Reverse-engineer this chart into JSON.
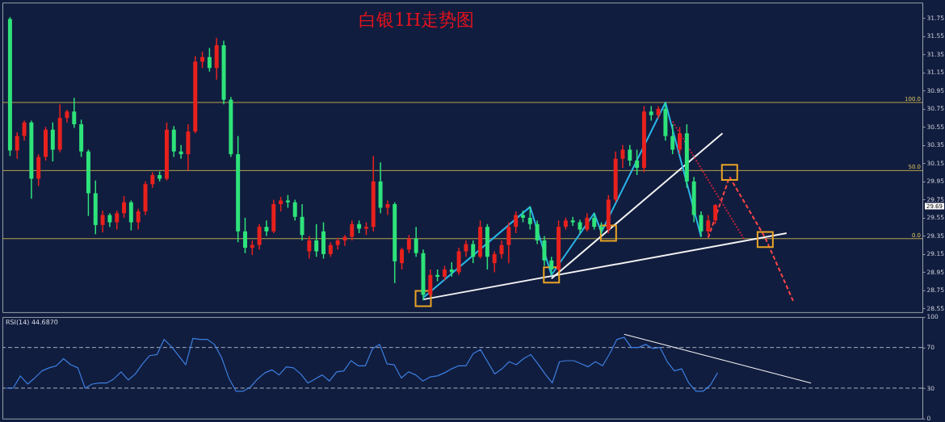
{
  "chart_data": [
    {
      "type": "candlestick",
      "title": "白银1H走势图",
      "categories": [
        null,
        null,
        null,
        null,
        null,
        null,
        null,
        null,
        null,
        null,
        null,
        null,
        null,
        null,
        null,
        null,
        null,
        null,
        null,
        null,
        null,
        null,
        null,
        null,
        null,
        null,
        null,
        null,
        null,
        null,
        null,
        null,
        null,
        null,
        null,
        null,
        null,
        null,
        null,
        null,
        null,
        null,
        null,
        null,
        null,
        null,
        null,
        null,
        null,
        null,
        null,
        null,
        null,
        null,
        null,
        null,
        null,
        null,
        null,
        null,
        null,
        null,
        null,
        null,
        null,
        null,
        null,
        null,
        null,
        null,
        null,
        null,
        null,
        null,
        null,
        null,
        null,
        null,
        null,
        null,
        null,
        null,
        null,
        null,
        null,
        null,
        null,
        null,
        null,
        null,
        null,
        null,
        null,
        null,
        null,
        null,
        null,
        null,
        null,
        null,
        null,
        null,
        null,
        null,
        null,
        null,
        null,
        null,
        null,
        null,
        null,
        null,
        null,
        null,
        null,
        null,
        null,
        null,
        null,
        null,
        null,
        null,
        null,
        null,
        null,
        null,
        null,
        null
      ],
      "ohlc": [
        [
          31.74,
          31.76,
          30.23,
          30.29
        ],
        [
          30.29,
          30.49,
          30.2,
          30.45
        ],
        [
          30.45,
          30.62,
          30.4,
          30.6
        ],
        [
          30.6,
          30.62,
          29.76,
          29.98
        ],
        [
          29.98,
          30.25,
          29.9,
          30.22
        ],
        [
          30.22,
          30.55,
          30.18,
          30.52
        ],
        [
          30.52,
          30.6,
          30.17,
          30.3
        ],
        [
          30.3,
          30.8,
          30.27,
          30.65
        ],
        [
          30.65,
          30.74,
          30.6,
          30.72
        ],
        [
          30.72,
          30.87,
          30.54,
          30.58
        ],
        [
          30.58,
          30.63,
          30.22,
          30.28
        ],
        [
          30.28,
          30.3,
          29.57,
          29.82
        ],
        [
          29.82,
          29.96,
          29.37,
          29.47
        ],
        [
          29.47,
          29.63,
          29.39,
          29.58
        ],
        [
          29.58,
          29.6,
          29.45,
          29.5
        ],
        [
          29.5,
          29.63,
          29.42,
          29.6
        ],
        [
          29.6,
          29.79,
          29.55,
          29.72
        ],
        [
          29.72,
          29.74,
          29.41,
          29.5
        ],
        [
          29.5,
          29.65,
          29.42,
          29.62
        ],
        [
          29.62,
          29.95,
          29.58,
          29.92
        ],
        [
          29.92,
          30.05,
          29.88,
          30.02
        ],
        [
          30.02,
          30.06,
          29.95,
          29.98
        ],
        [
          29.98,
          30.6,
          29.96,
          30.52
        ],
        [
          30.52,
          30.56,
          30.22,
          30.28
        ],
        [
          30.28,
          30.35,
          30.2,
          30.25
        ],
        [
          30.25,
          30.58,
          30.07,
          30.5
        ],
        [
          30.5,
          31.33,
          30.48,
          31.27
        ],
        [
          31.27,
          31.38,
          31.2,
          31.32
        ],
        [
          31.32,
          31.42,
          31.16,
          31.2
        ],
        [
          31.2,
          31.53,
          31.07,
          31.45
        ],
        [
          31.45,
          31.5,
          30.8,
          30.85
        ],
        [
          30.85,
          30.88,
          30.22,
          30.25
        ],
        [
          30.25,
          30.45,
          29.28,
          29.4
        ],
        [
          29.4,
          29.55,
          29.16,
          29.22
        ],
        [
          29.22,
          29.3,
          29.14,
          29.25
        ],
        [
          29.25,
          29.48,
          29.2,
          29.45
        ],
        [
          29.45,
          29.52,
          29.35,
          29.4
        ],
        [
          29.4,
          29.75,
          29.38,
          29.7
        ],
        [
          29.7,
          29.78,
          29.62,
          29.74
        ],
        [
          29.74,
          29.8,
          29.66,
          29.72
        ],
        [
          29.72,
          29.75,
          29.52,
          29.56
        ],
        [
          29.56,
          29.7,
          29.3,
          29.36
        ],
        [
          29.18,
          29.35,
          29.1,
          29.3
        ],
        [
          29.3,
          29.48,
          29.12,
          29.18
        ],
        [
          29.4,
          29.5,
          29.1,
          29.15
        ],
        [
          29.15,
          29.28,
          29.12,
          29.25
        ],
        [
          29.25,
          29.33,
          29.2,
          29.3
        ],
        [
          29.3,
          29.36,
          29.24,
          29.34
        ],
        [
          29.34,
          29.52,
          29.3,
          29.48
        ],
        [
          29.48,
          29.52,
          29.38,
          29.43
        ],
        [
          29.43,
          29.5,
          29.36,
          29.45
        ],
        [
          29.45,
          30.23,
          29.4,
          29.95
        ],
        [
          29.95,
          30.16,
          29.6,
          29.66
        ],
        [
          29.66,
          29.74,
          29.58,
          29.7
        ],
        [
          29.7,
          29.72,
          28.83,
          29.07
        ],
        [
          29.05,
          29.22,
          28.98,
          29.2
        ],
        [
          29.2,
          29.36,
          29.16,
          29.32
        ],
        [
          29.32,
          29.45,
          29.12,
          29.16
        ],
        [
          29.16,
          29.2,
          28.64,
          28.7
        ],
        [
          28.7,
          28.98,
          28.68,
          28.92
        ],
        [
          28.92,
          28.98,
          28.85,
          28.9
        ],
        [
          28.9,
          29.02,
          28.86,
          28.98
        ],
        [
          28.98,
          29.06,
          28.9,
          28.95
        ],
        [
          28.95,
          29.22,
          28.92,
          29.18
        ],
        [
          29.18,
          29.3,
          29.12,
          29.26
        ],
        [
          29.26,
          29.3,
          29.05,
          29.12
        ],
        [
          29.12,
          29.52,
          29.1,
          29.45
        ],
        [
          29.45,
          29.48,
          28.98,
          29.12
        ],
        [
          29.05,
          29.18,
          28.95,
          29.15
        ],
        [
          29.15,
          29.3,
          29.1,
          29.25
        ],
        [
          29.25,
          29.5,
          29.05,
          29.45
        ],
        [
          29.45,
          29.62,
          29.38,
          29.58
        ],
        [
          29.58,
          29.63,
          29.5,
          29.55
        ],
        [
          29.55,
          29.67,
          29.42,
          29.48
        ],
        [
          29.48,
          29.52,
          29.26,
          29.3
        ],
        [
          29.3,
          29.35,
          29.02,
          29.08
        ],
        [
          29.08,
          29.12,
          28.92,
          28.98
        ],
        [
          28.98,
          29.52,
          28.96,
          29.45
        ],
        [
          29.45,
          29.55,
          29.42,
          29.52
        ],
        [
          29.52,
          29.56,
          29.46,
          29.5
        ],
        [
          29.5,
          29.53,
          29.38,
          29.42
        ],
        [
          29.42,
          29.6,
          29.4,
          29.55
        ],
        [
          29.55,
          29.6,
          29.42,
          29.45
        ],
        [
          29.45,
          29.5,
          29.37,
          29.42
        ],
        [
          29.42,
          29.8,
          29.38,
          29.75
        ],
        [
          29.75,
          30.28,
          29.72,
          30.2
        ],
        [
          30.2,
          30.35,
          30.1,
          30.3
        ],
        [
          30.3,
          30.35,
          30.12,
          30.18
        ],
        [
          30.18,
          30.3,
          30.02,
          30.1
        ],
        [
          30.1,
          30.78,
          30.05,
          30.72
        ],
        [
          30.72,
          30.78,
          30.62,
          30.68
        ],
        [
          30.68,
          30.78,
          30.64,
          30.75
        ],
        [
          30.75,
          30.82,
          30.4,
          30.45
        ],
        [
          30.45,
          30.58,
          30.25,
          30.3
        ],
        [
          30.3,
          30.55,
          30.25,
          30.48
        ],
        [
          30.48,
          30.58,
          29.88,
          29.95
        ],
        [
          29.95,
          30.0,
          29.5,
          29.58
        ],
        [
          29.58,
          29.62,
          29.34,
          29.4
        ],
        [
          29.4,
          29.58,
          29.36,
          29.52
        ],
        [
          29.52,
          29.7,
          29.48,
          29.69
        ],
        null,
        null,
        null,
        null,
        null,
        null,
        null,
        null,
        null,
        null,
        null,
        null,
        null,
        null,
        null,
        null,
        null,
        null,
        null,
        null,
        null,
        null,
        null,
        null,
        null,
        null,
        null,
        null
      ],
      "colors": [
        "#2ee37a",
        "#e8211d",
        "#e8211d",
        "#2ee37a",
        "#e8211d",
        "#e8211d",
        "#2ee37a",
        "#e8211d",
        "#e8211d",
        "#2ee37a",
        "#2ee37a",
        "#2ee37a",
        "#2ee37a",
        "#e8211d",
        "#2ee37a",
        "#e8211d",
        "#e8211d",
        "#2ee37a",
        "#e8211d",
        "#e8211d",
        "#e8211d",
        "#2ee37a",
        "#e8211d",
        "#2ee37a",
        "#2ee37a",
        "#e8211d",
        "#e8211d",
        "#e8211d",
        "#2ee37a",
        "#e8211d",
        "#2ee37a",
        "#2ee37a",
        "#2ee37a",
        "#2ee37a",
        "#e8211d",
        "#e8211d",
        "#2ee37a",
        "#e8211d",
        "#e8211d",
        "#2ee37a",
        "#2ee37a",
        "#2ee37a",
        "#e8211d",
        "#2ee37a",
        "#2ee37a",
        "#e8211d",
        "#e8211d",
        "#e8211d",
        "#e8211d",
        "#2ee37a",
        "#e8211d",
        "#e8211d",
        "#2ee37a",
        "#e8211d",
        "#2ee37a",
        "#e8211d",
        "#e8211d",
        "#2ee37a",
        "#2ee37a",
        "#e8211d",
        "#2ee37a",
        "#e8211d",
        "#2ee37a",
        "#e8211d",
        "#e8211d",
        "#2ee37a",
        "#e8211d",
        "#2ee37a",
        "#e8211d",
        "#e8211d",
        "#e8211d",
        "#e8211d",
        "#2ee37a",
        "#2ee37a",
        "#2ee37a",
        "#2ee37a",
        "#2ee37a",
        "#e8211d",
        "#e8211d",
        "#2ee37a",
        "#2ee37a",
        "#e8211d",
        "#2ee37a",
        "#2ee37a",
        "#e8211d",
        "#e8211d",
        "#e8211d",
        "#2ee37a",
        "#2ee37a",
        "#e8211d",
        "#2ee37a",
        "#e8211d",
        "#2ee37a",
        "#2ee37a",
        "#e8211d",
        "#2ee37a",
        "#2ee37a",
        "#2ee37a",
        "#e8211d",
        "#e8211d",
        null,
        null,
        null,
        null,
        null,
        null,
        null,
        null,
        null,
        null,
        null,
        null,
        null,
        null,
        null,
        null,
        null,
        null,
        null,
        null,
        null,
        null,
        null,
        null,
        null,
        null,
        null,
        null
      ],
      "series": [
        {
          "type": "line",
          "color": "#f2f2f2",
          "values": [
            null,
            null,
            null,
            null,
            null,
            null,
            null,
            null,
            null,
            null,
            null,
            null,
            null,
            null,
            null,
            null,
            null,
            null,
            null,
            null,
            null,
            null,
            null,
            null,
            null,
            null,
            null,
            null,
            null,
            null,
            null,
            null,
            null,
            null,
            null,
            null,
            null,
            null,
            null,
            null,
            null,
            null,
            null,
            null,
            null,
            null,
            null,
            null,
            null,
            null,
            null,
            null,
            null,
            null,
            null,
            null,
            null,
            null,
            28.65,
            null,
            null,
            null,
            null,
            null,
            null,
            null,
            null,
            null,
            null,
            null,
            null,
            null,
            null,
            null,
            null,
            null,
            null,
            null,
            null,
            null,
            null,
            null,
            null,
            null,
            null,
            null,
            null,
            null,
            null,
            null,
            null,
            null,
            null,
            null,
            null,
            null,
            null,
            null,
            null,
            null,
            null,
            null,
            null,
            null,
            null,
            null,
            null,
            null,
            null,
            29.38,
            null,
            null,
            null,
            null,
            null,
            null,
            null,
            null,
            null,
            null,
            null,
            null,
            null,
            null,
            null,
            null,
            null,
            null
          ]
        },
        {
          "type": "line",
          "color": "#f2f2f2",
          "values": [
            null,
            null,
            null,
            null,
            null,
            null,
            null,
            null,
            null,
            null,
            null,
            null,
            null,
            null,
            null,
            null,
            null,
            null,
            null,
            null,
            null,
            null,
            null,
            null,
            null,
            null,
            null,
            null,
            null,
            null,
            null,
            null,
            null,
            null,
            null,
            null,
            null,
            null,
            null,
            null,
            null,
            null,
            null,
            null,
            null,
            null,
            null,
            null,
            null,
            null,
            null,
            null,
            null,
            null,
            null,
            null,
            null,
            null,
            null,
            null,
            null,
            null,
            null,
            null,
            null,
            null,
            null,
            null,
            null,
            null,
            null,
            null,
            null,
            null,
            null,
            null,
            28.88,
            null,
            null,
            null,
            null,
            null,
            null,
            null,
            null,
            null,
            null,
            null,
            null,
            null,
            null,
            null,
            null,
            null,
            null,
            null,
            null,
            null,
            null,
            null,
            30.48,
            null,
            null,
            null,
            null,
            null,
            null,
            null,
            null,
            null,
            null,
            null,
            null,
            null,
            null,
            null,
            null,
            null,
            null,
            null,
            null,
            null,
            null,
            null,
            null,
            null,
            null,
            null
          ]
        },
        {
          "type": "line",
          "color": "#29b6e8",
          "values": [
            null,
            null,
            null,
            null,
            null,
            null,
            null,
            null,
            null,
            null,
            null,
            null,
            null,
            null,
            null,
            null,
            null,
            null,
            null,
            null,
            null,
            null,
            null,
            null,
            null,
            null,
            null,
            null,
            null,
            null,
            null,
            null,
            null,
            null,
            null,
            null,
            null,
            null,
            null,
            null,
            null,
            null,
            null,
            null,
            null,
            null,
            null,
            null,
            null,
            null,
            null,
            null,
            null,
            null,
            null,
            null,
            null,
            null,
            28.67,
            null,
            null,
            null,
            null,
            null,
            null,
            null,
            null,
            null,
            null,
            null,
            null,
            null,
            null,
            29.67,
            null,
            null,
            28.92,
            null,
            null,
            null,
            null,
            null,
            29.6,
            29.39,
            null,
            null,
            null,
            null,
            null,
            null,
            null,
            null,
            30.82,
            null,
            null,
            null,
            null,
            29.34,
            null,
            null,
            null,
            null,
            null,
            null,
            null,
            null,
            null,
            null,
            null,
            null,
            null,
            null,
            null,
            null,
            null,
            null,
            null,
            null,
            null,
            null,
            null,
            null,
            null,
            null,
            null,
            null,
            null,
            null
          ]
        },
        {
          "type": "line",
          "color": "#ff4646",
          "line_style": "dashed",
          "values": [
            null,
            null,
            null,
            null,
            null,
            null,
            null,
            null,
            null,
            null,
            null,
            null,
            null,
            null,
            null,
            null,
            null,
            null,
            null,
            null,
            null,
            null,
            null,
            null,
            null,
            null,
            null,
            null,
            null,
            null,
            null,
            null,
            null,
            null,
            null,
            null,
            null,
            null,
            null,
            null,
            null,
            null,
            null,
            null,
            null,
            null,
            null,
            null,
            null,
            null,
            null,
            null,
            null,
            null,
            null,
            null,
            null,
            null,
            null,
            null,
            null,
            null,
            null,
            null,
            null,
            null,
            null,
            null,
            null,
            null,
            null,
            null,
            null,
            null,
            null,
            null,
            null,
            null,
            null,
            null,
            null,
            null,
            null,
            null,
            null,
            null,
            null,
            null,
            null,
            null,
            null,
            null,
            null,
            null,
            null,
            null,
            null,
            null,
            29.33,
            null,
            null,
            30.0,
            null,
            null,
            null,
            null,
            29.33,
            null,
            null,
            null,
            28.62,
            null,
            null,
            null,
            null,
            null,
            null,
            null,
            null,
            null,
            null,
            null,
            null,
            null,
            null,
            null,
            null,
            null
          ]
        },
        {
          "type": "line",
          "color": "#c0203a",
          "line_style": "dotted",
          "values": [
            null,
            null,
            null,
            null,
            null,
            null,
            null,
            null,
            null,
            null,
            null,
            null,
            null,
            null,
            null,
            null,
            null,
            null,
            null,
            null,
            null,
            null,
            null,
            null,
            null,
            null,
            null,
            null,
            null,
            null,
            null,
            null,
            null,
            null,
            null,
            null,
            null,
            null,
            null,
            null,
            null,
            null,
            null,
            null,
            null,
            null,
            null,
            null,
            null,
            null,
            null,
            null,
            null,
            null,
            null,
            null,
            null,
            null,
            null,
            null,
            null,
            null,
            null,
            null,
            null,
            null,
            null,
            null,
            null,
            null,
            null,
            null,
            null,
            null,
            null,
            null,
            null,
            null,
            null,
            null,
            null,
            null,
            null,
            null,
            null,
            null,
            null,
            null,
            null,
            null,
            null,
            null,
            null,
            30.61,
            null,
            null,
            null,
            null,
            null,
            null,
            null,
            null,
            null,
            29.32,
            null,
            null,
            null,
            null,
            null,
            null,
            null,
            null,
            null,
            null,
            null,
            null,
            null,
            null,
            null,
            null,
            null,
            null,
            null,
            null,
            null,
            null,
            null,
            null
          ]
        },
        {
          "type": "scatter",
          "color": "#eaa424",
          "marker": "square",
          "values": [
            null,
            null,
            null,
            null,
            null,
            null,
            null,
            null,
            null,
            null,
            null,
            null,
            null,
            null,
            null,
            null,
            null,
            null,
            null,
            null,
            null,
            null,
            null,
            null,
            null,
            null,
            null,
            null,
            null,
            null,
            null,
            null,
            null,
            null,
            null,
            null,
            null,
            null,
            null,
            null,
            null,
            null,
            null,
            null,
            null,
            null,
            null,
            null,
            null,
            null,
            null,
            null,
            null,
            null,
            null,
            null,
            null,
            null,
            28.66,
            null,
            null,
            null,
            null,
            null,
            null,
            null,
            null,
            null,
            null,
            null,
            null,
            null,
            null,
            null,
            null,
            null,
            28.92,
            null,
            null,
            null,
            null,
            null,
            null,
            null,
            29.38,
            null,
            null,
            null,
            null,
            null,
            null,
            null,
            null,
            null,
            null,
            null,
            null,
            null,
            null,
            null,
            null,
            30.05,
            null,
            null,
            null,
            null,
            29.31,
            null,
            null,
            null,
            null,
            null,
            null,
            null,
            null,
            null,
            null,
            null,
            null,
            null,
            null,
            null,
            null,
            null,
            null,
            null,
            null,
            null
          ]
        }
      ],
      "ylim": [
        28.51,
        31.92
      ],
      "yticks": [
        28.55,
        28.75,
        28.95,
        29.15,
        29.35,
        29.55,
        29.75,
        29.95,
        30.15,
        30.35,
        30.55,
        30.75,
        30.95,
        31.15,
        31.35,
        31.55,
        31.75
      ],
      "ref_lines": [
        {
          "axis": "y",
          "value": 30.82,
          "color": "#b8a44c"
        },
        {
          "axis": "y",
          "value": 30.07,
          "color": "#b8a44c"
        },
        {
          "axis": "y",
          "value": 29.32,
          "color": "#b8a44c"
        }
      ],
      "annotations": [
        {
          "text": "100.0",
          "y": 30.82
        },
        {
          "text": "50.0",
          "y": 30.07
        },
        {
          "text": "0.0",
          "y": 29.32
        },
        "29.69"
      ],
      "tick_labels": "y"
    },
    {
      "type": "line",
      "title": "RSI(14) 44.6870",
      "categories": [
        null,
        null,
        null,
        null,
        null,
        null,
        null,
        null,
        null,
        null,
        null,
        null,
        null,
        null,
        null,
        null,
        null,
        null,
        null,
        null,
        null,
        null,
        null,
        null,
        null,
        null,
        null,
        null,
        null,
        null,
        null,
        null,
        null,
        null,
        null,
        null,
        null,
        null,
        null,
        null,
        null,
        null,
        null,
        null,
        null,
        null,
        null,
        null,
        null,
        null,
        null,
        null,
        null,
        null,
        null,
        null,
        null,
        null,
        null,
        null,
        null,
        null,
        null,
        null,
        null,
        null,
        null,
        null,
        null,
        null,
        null,
        null,
        null,
        null,
        null,
        null,
        null,
        null,
        null,
        null,
        null,
        null,
        null,
        null,
        null,
        null,
        null,
        null,
        null,
        null,
        null,
        null,
        null,
        null,
        null,
        null,
        null,
        null,
        null,
        null,
        null,
        null,
        null,
        null,
        null,
        null,
        null,
        null,
        null,
        null,
        null,
        null,
        null,
        null,
        null,
        null,
        null,
        null,
        null,
        null,
        null,
        null,
        null,
        null,
        null,
        null,
        null,
        null
      ],
      "series": [
        {
          "color": "#3d7fe0",
          "values": [
            30,
            30,
            42,
            34,
            40,
            47,
            50,
            52,
            59,
            53,
            50,
            30,
            34,
            35,
            35,
            39,
            46,
            38,
            44,
            54,
            62,
            63,
            78,
            71,
            62,
            53,
            79,
            78,
            78,
            73,
            60,
            40,
            27,
            27,
            31,
            39,
            45,
            48,
            43,
            51,
            50,
            44,
            35,
            39,
            43,
            37,
            46,
            47,
            57,
            52,
            52,
            69,
            73,
            54,
            53,
            40,
            46,
            43,
            37,
            41,
            42,
            45,
            49,
            52,
            52,
            64,
            68,
            56,
            44,
            49,
            56,
            53,
            59,
            63,
            54,
            44,
            35,
            56,
            57,
            57,
            54,
            51,
            56,
            52,
            64,
            78,
            80,
            70,
            70,
            73,
            69,
            70,
            56,
            47,
            49,
            35,
            27,
            27,
            33,
            45,
            null,
            null,
            null,
            null,
            null,
            null,
            null,
            null,
            null,
            null,
            null,
            null,
            null,
            null,
            null,
            null,
            null,
            null,
            null,
            null,
            null,
            null,
            null,
            null,
            null,
            null,
            null,
            null
          ]
        },
        {
          "color": "#f2f2f2",
          "values": [
            null,
            null,
            null,
            null,
            null,
            null,
            null,
            null,
            null,
            null,
            null,
            null,
            null,
            null,
            null,
            null,
            null,
            null,
            null,
            null,
            null,
            null,
            null,
            null,
            null,
            null,
            null,
            null,
            null,
            null,
            null,
            null,
            null,
            null,
            null,
            null,
            null,
            null,
            null,
            null,
            null,
            null,
            null,
            null,
            null,
            null,
            null,
            null,
            null,
            null,
            null,
            null,
            null,
            null,
            null,
            null,
            null,
            null,
            null,
            null,
            null,
            null,
            null,
            null,
            null,
            null,
            null,
            null,
            null,
            null,
            null,
            null,
            null,
            null,
            null,
            null,
            null,
            null,
            null,
            null,
            null,
            null,
            null,
            null,
            null,
            null,
            83,
            null,
            null,
            null,
            null,
            null,
            null,
            null,
            null,
            null,
            null,
            null,
            null,
            null,
            null,
            null,
            null,
            null,
            null,
            null,
            null,
            null,
            null,
            null,
            null,
            null,
            35,
            null,
            null,
            null,
            null,
            null,
            null,
            null,
            null,
            null,
            null,
            null,
            null,
            null,
            null,
            null
          ]
        }
      ],
      "ylim": [
        0,
        100
      ],
      "yticks": [
        0,
        30,
        70,
        100
      ],
      "ref_lines": [
        {
          "axis": "y",
          "value": 30,
          "color": "#a8b0c0",
          "line_style": "dashed"
        },
        {
          "axis": "y",
          "value": 70,
          "color": "#a8b0c0",
          "line_style": "dashed"
        }
      ],
      "tick_labels": "y"
    }
  ]
}
